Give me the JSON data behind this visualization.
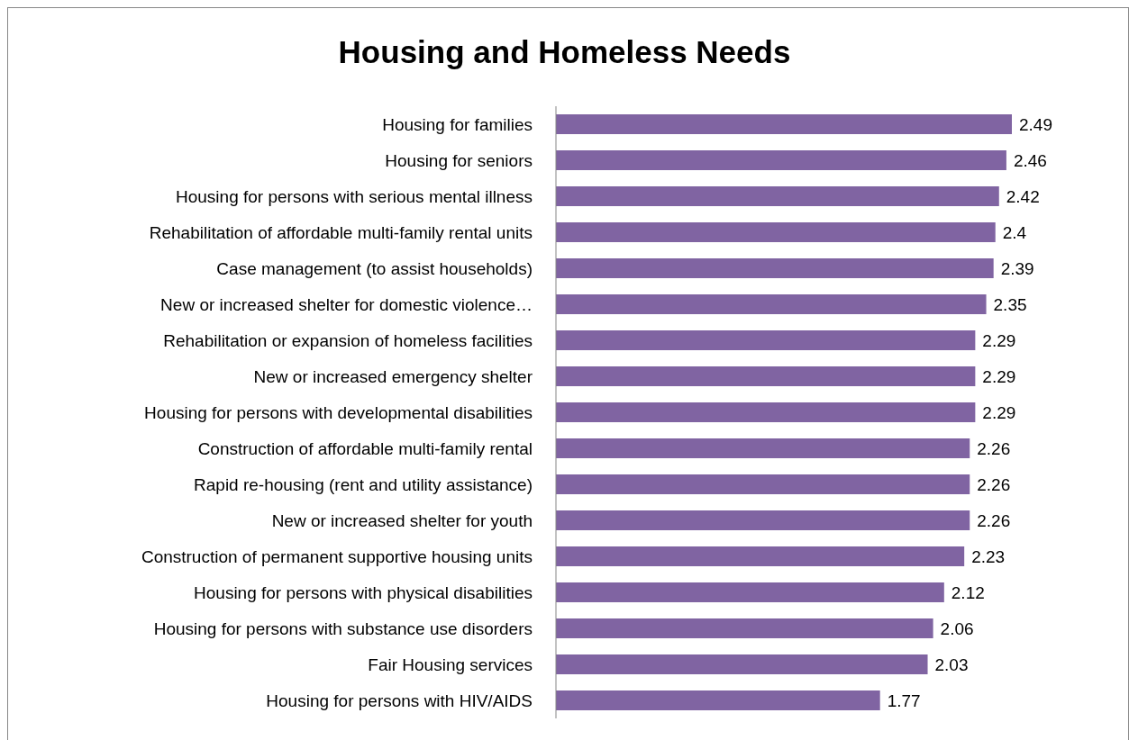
{
  "chart_data": {
    "type": "bar",
    "orientation": "horizontal",
    "title": "Housing and Homeless Needs",
    "categories": [
      "Housing for families",
      "Housing for seniors",
      "Housing for persons with serious mental illness",
      "Rehabilitation of affordable multi-family rental units",
      "Case management (to assist households)",
      "New or increased shelter for domestic violence…",
      "Rehabilitation or expansion of homeless facilities",
      "New or increased emergency shelter",
      "Housing for persons with developmental disabilities",
      "Construction of affordable multi-family rental",
      "Rapid re-housing (rent and utility assistance)",
      "New or increased shelter for youth",
      "Construction of permanent supportive housing units",
      "Housing for persons with physical disabilities",
      "Housing for persons with substance use disorders",
      "Fair Housing services",
      "Housing for persons with HIV/AIDS"
    ],
    "values": [
      2.49,
      2.46,
      2.42,
      2.4,
      2.39,
      2.35,
      2.29,
      2.29,
      2.29,
      2.26,
      2.26,
      2.26,
      2.23,
      2.12,
      2.06,
      2.03,
      1.77
    ],
    "color": "#8064a2",
    "data_labels": true
  }
}
